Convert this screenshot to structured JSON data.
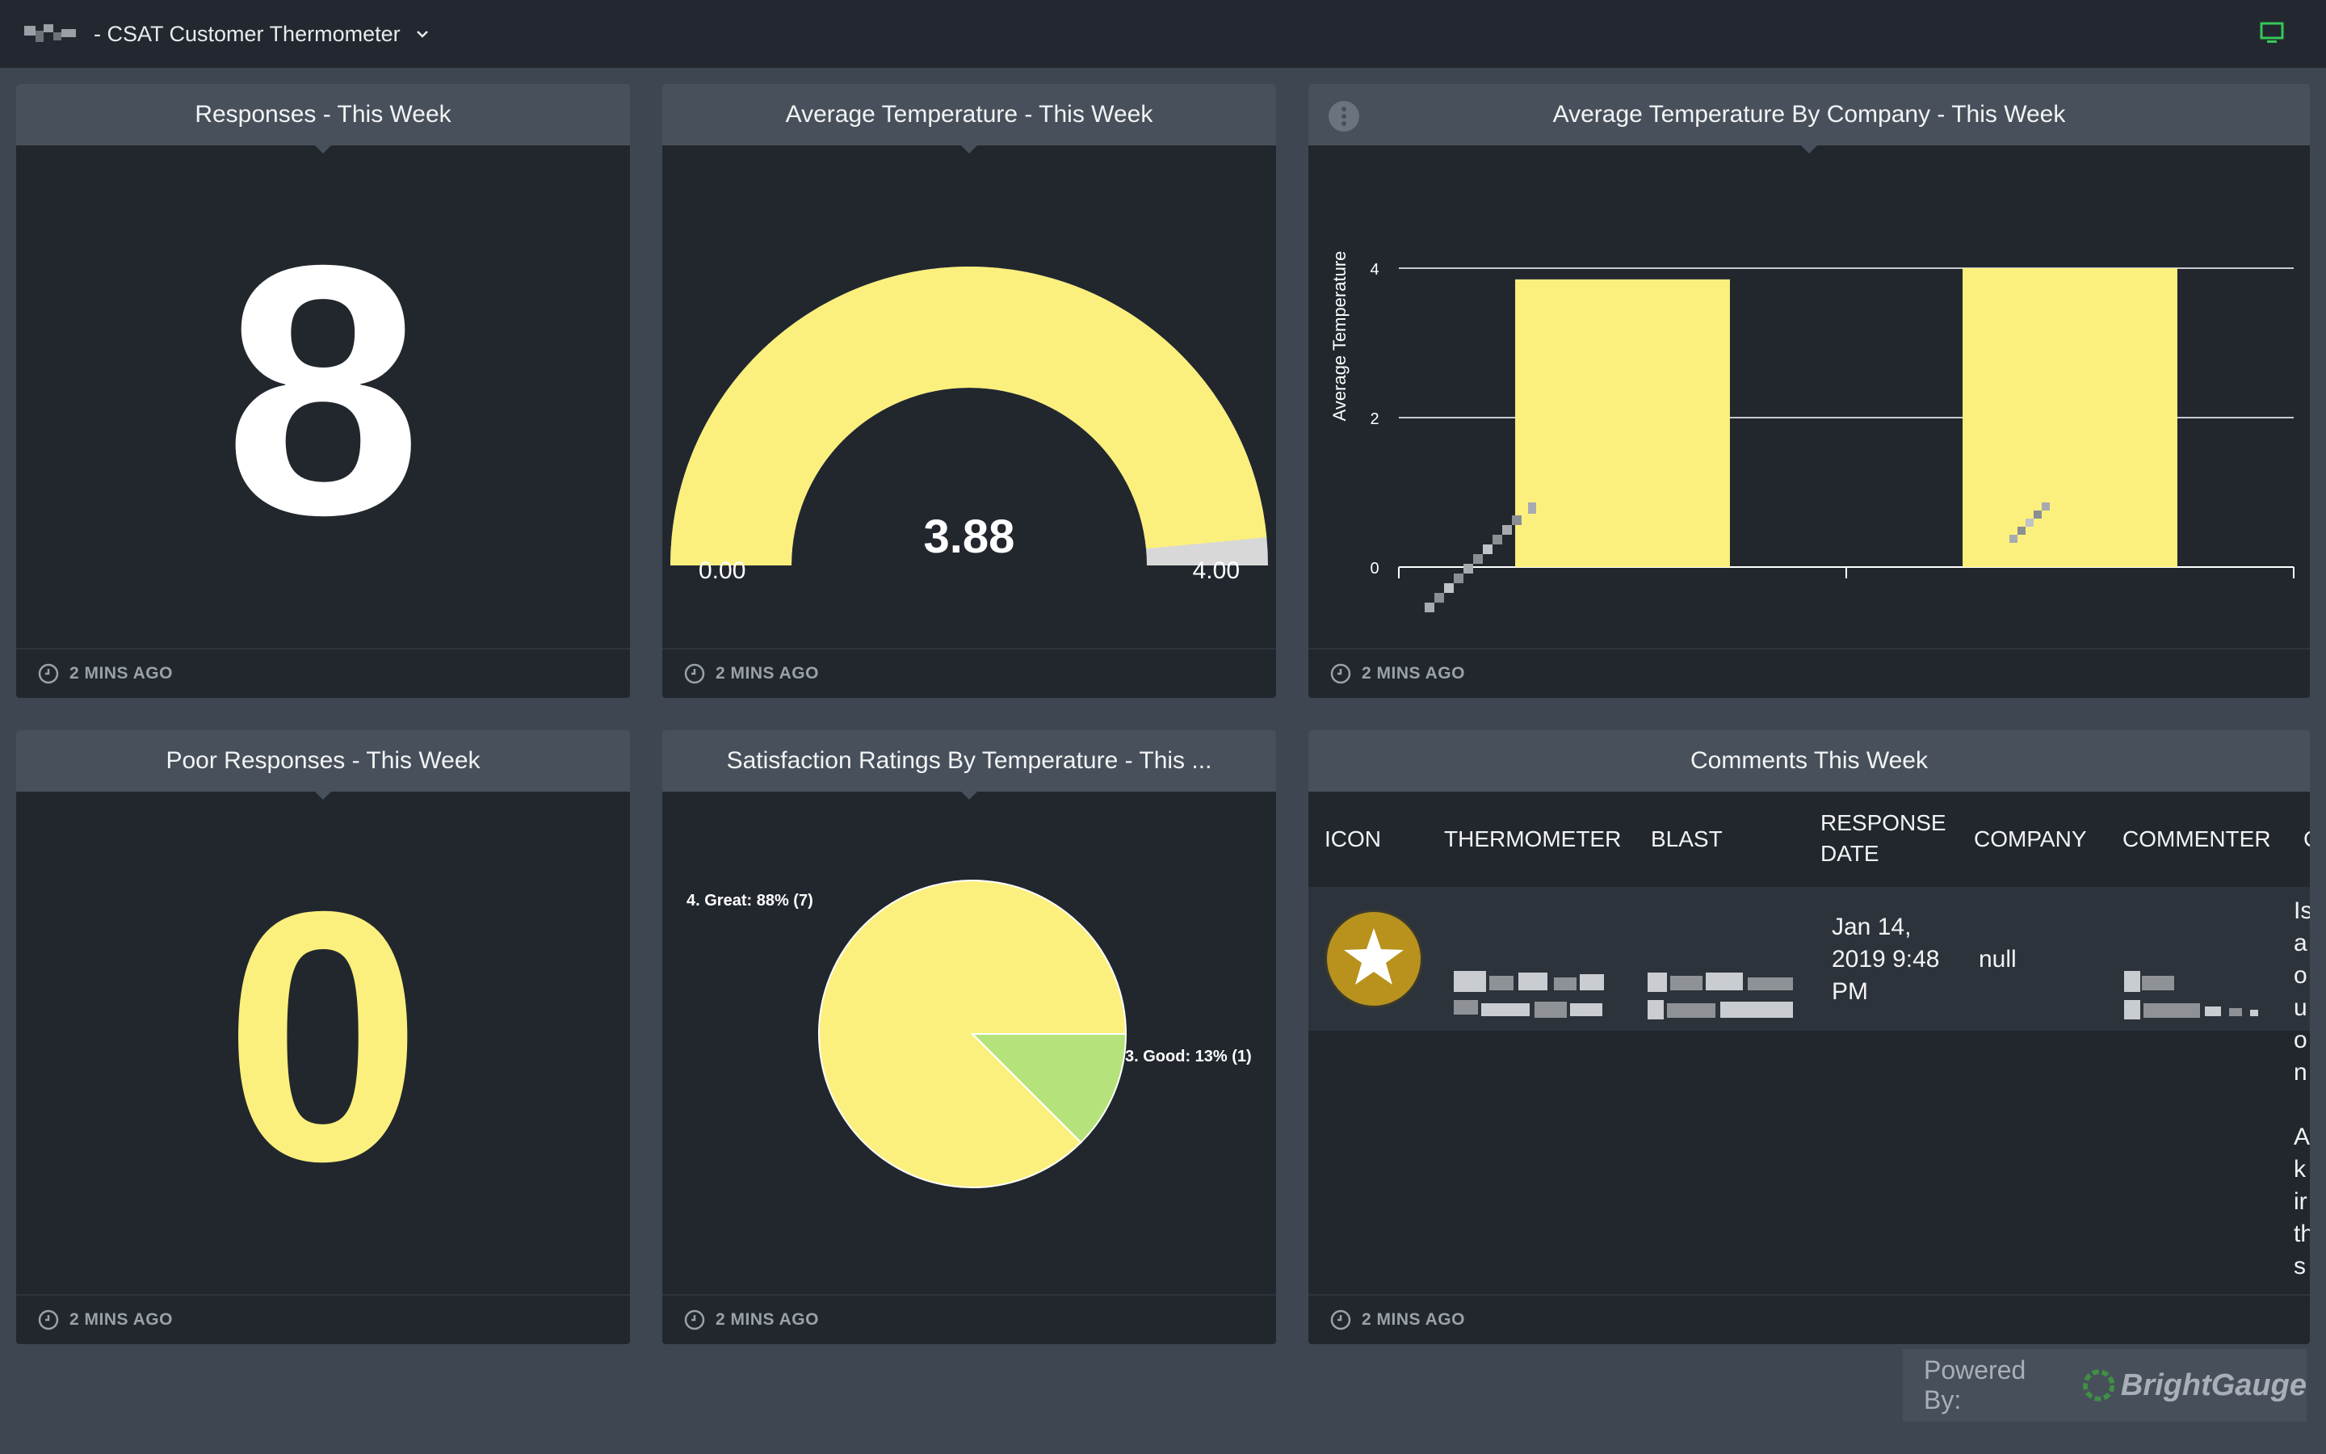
{
  "topbar": {
    "title": "- CSAT Customer Thermometer"
  },
  "panels": {
    "responses": {
      "title": "Responses - This Week",
      "value": "8",
      "updated": "2 MINS AGO"
    },
    "avg_temp": {
      "title": "Average Temperature - This Week",
      "value": "3.88",
      "min": "0.00",
      "max": "4.00",
      "updated": "2 MINS AGO"
    },
    "avg_temp_company": {
      "title": "Average Temperature By Company - This Week",
      "updated": "2 MINS AGO"
    },
    "poor": {
      "title": "Poor Responses - This Week",
      "value": "0",
      "updated": "2 MINS AGO"
    },
    "satisfaction": {
      "title": "Satisfaction Ratings By Temperature - This ...",
      "updated": "2 MINS AGO"
    },
    "comments": {
      "title": "Comments This Week",
      "updated": "2 MINS AGO",
      "columns": [
        "ICON",
        "THERMOMETER",
        "BLAST",
        "RESPONSE DATE",
        "COMPANY",
        "COMMENTER"
      ],
      "rows": [
        {
          "response_date": "Jan 14, 2019 9:48 PM",
          "company": "null"
        }
      ],
      "cut_column_letters": [
        "Is",
        "a",
        "o",
        "u",
        "o",
        "n",
        "A",
        "k",
        "ir",
        "th",
        "s"
      ]
    }
  },
  "chart_data": [
    {
      "type": "gauge",
      "value": 3.88,
      "min": 0,
      "max": 4,
      "min_label": "0.00",
      "max_label": "4.00",
      "value_label": "3.88"
    },
    {
      "type": "bar",
      "categories": [
        "",
        ""
      ],
      "values": [
        3.85,
        4.0
      ],
      "ylabel": "Average Temperature",
      "ylim": [
        0,
        4
      ],
      "yticks": [
        "0",
        "2",
        "4"
      ],
      "grid": true,
      "color": "#fbf07d"
    },
    {
      "type": "pie",
      "slices": [
        {
          "label": "4. Great: 88% (7)",
          "value": 7,
          "percent": 88,
          "color": "#fbf07d"
        },
        {
          "label": "3. Good: 13% (1)",
          "value": 1,
          "percent": 13,
          "color": "#b5e27a"
        }
      ]
    }
  ],
  "footer": {
    "powered_label": "Powered By:",
    "brand": "BrightGauge"
  },
  "colors": {
    "accent_yellow": "#fbf07d",
    "accent_green": "#b5e27a",
    "panel_bg": "#22272e",
    "header_bg": "#48515b",
    "page_bg": "#3e4751",
    "gold": "#b8921d"
  }
}
